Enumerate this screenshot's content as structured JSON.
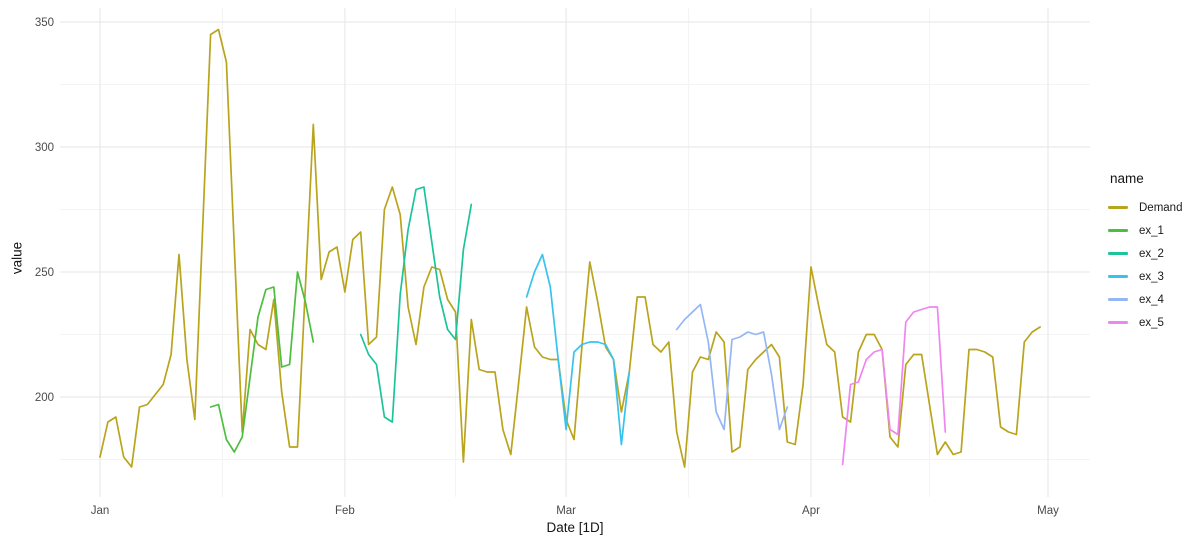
{
  "chart_data": {
    "type": "line",
    "title": "",
    "x_axis": {
      "label": "Date [1D]",
      "ticks": [
        {
          "label": "Jan",
          "day": 0
        },
        {
          "label": "Feb",
          "day": 31
        },
        {
          "label": "Mar",
          "day": 59
        },
        {
          "label": "Apr",
          "day": 90
        },
        {
          "label": "May",
          "day": 120
        }
      ],
      "minor_tick_days": [
        15.5,
        45,
        74.5,
        105
      ],
      "note": "day 0 = Jan 1, daily frequency"
    },
    "y_axis": {
      "label": "value",
      "ticks": [
        350,
        300,
        250,
        200
      ],
      "minor_ticks": [
        325,
        275,
        225,
        175
      ],
      "range": [
        160,
        356
      ]
    },
    "legend": {
      "title": "name",
      "position": "right"
    },
    "grid": true,
    "colors": {
      "background": "#ffffff",
      "grid_major": "#e9e9e9",
      "grid_minor": "#f4f4f4",
      "tick_text": "#4b4b4b",
      "title_text": "#141414"
    },
    "series": [
      {
        "name": "Demand",
        "color": "#b9a41d",
        "start_day": 0,
        "values": [
          176,
          190,
          192,
          176,
          172,
          196,
          197,
          201,
          205,
          217,
          257,
          215,
          191,
          268,
          345,
          347,
          334,
          260,
          186,
          227,
          221,
          219,
          239,
          202,
          180,
          180,
          244,
          309,
          247,
          258,
          260,
          242,
          263,
          266,
          221,
          224,
          275,
          284,
          273,
          236,
          221,
          244,
          252,
          251,
          239,
          234,
          174,
          231,
          211,
          210,
          210,
          187,
          177,
          206,
          236,
          220,
          216,
          215,
          215,
          191,
          183,
          220,
          254,
          238,
          220,
          215,
          194,
          210,
          240,
          240,
          221,
          218,
          222,
          186,
          172,
          210,
          216,
          215,
          226,
          222,
          178,
          180,
          211,
          215,
          218,
          221,
          216,
          182,
          181,
          205,
          252,
          236,
          221,
          218,
          192,
          190,
          218,
          225,
          225,
          219,
          184,
          180,
          213,
          217,
          217,
          197,
          177,
          182,
          177,
          178,
          219,
          219,
          218,
          216,
          188,
          186,
          185,
          222,
          226,
          228
        ]
      },
      {
        "name": "ex_1",
        "color": "#4dbe3f",
        "start_day": 14,
        "values": [
          196,
          197,
          183,
          178,
          184,
          208,
          232,
          243,
          244,
          212,
          213,
          250,
          238,
          222
        ]
      },
      {
        "name": "ex_2",
        "color": "#1cc49a",
        "start_day": 33,
        "values": [
          225,
          217,
          213,
          192,
          190,
          241,
          267,
          283,
          284,
          262,
          240,
          227,
          223,
          259,
          277
        ]
      },
      {
        "name": "ex_3",
        "color": "#38c3ee",
        "start_day": 54,
        "values": [
          240,
          250,
          257,
          244,
          215,
          187,
          218,
          221,
          222,
          222,
          221,
          215,
          181,
          210
        ]
      },
      {
        "name": "ex_4",
        "color": "#95b6f4",
        "start_day": 73,
        "values": [
          227,
          231,
          234,
          237,
          222,
          194,
          187,
          223,
          224,
          226,
          225,
          226,
          209,
          187,
          196
        ]
      },
      {
        "name": "ex_5",
        "color": "#ef85ef",
        "start_day": 94,
        "values": [
          173,
          205,
          206,
          215,
          218,
          219,
          187,
          185,
          230,
          234,
          235,
          236,
          236,
          186
        ]
      }
    ]
  }
}
